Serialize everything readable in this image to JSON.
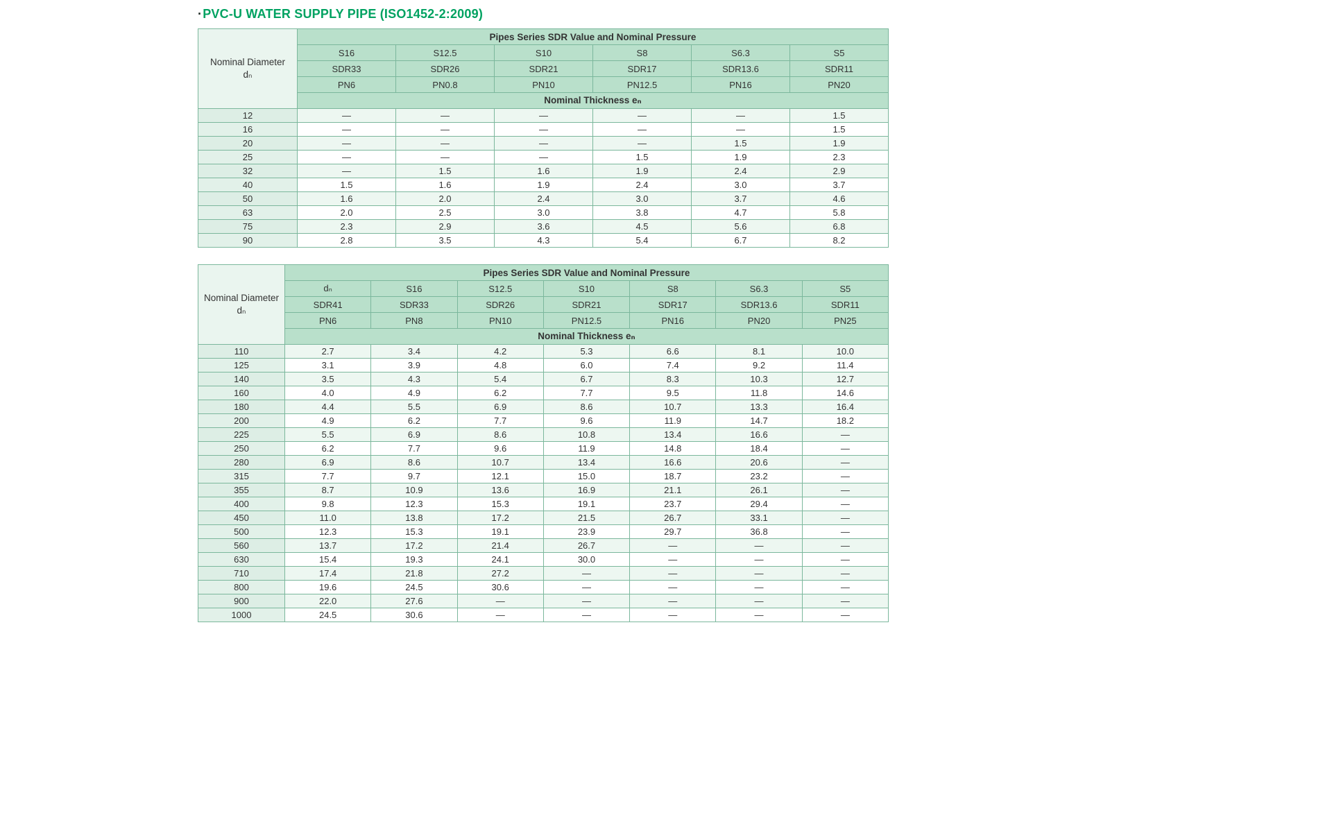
{
  "page": {
    "bullet": "·",
    "title": "PVC-U WATER SUPPLY PIPE (ISO1452-2:2009)"
  },
  "colors": {
    "accent_green": "#00a261",
    "header_bg": "#b9e0cb",
    "corner_bg": "#eaf5ef",
    "border": "#7bb79c",
    "row_stripe": "#edf7f1",
    "diameter_column_bg": "#e2f1e9"
  },
  "table1": {
    "corner_label": "Nominal Diameter\ndₙ",
    "header_title": "Pipes Series SDR Value and Nominal Pressure",
    "series_row": [
      "S16",
      "S12.5",
      "S10",
      "S8",
      "S6.3",
      "S5"
    ],
    "sdr_row": [
      "SDR33",
      "SDR26",
      "SDR21",
      "SDR17",
      "SDR13.6",
      "SDR11"
    ],
    "pn_row": [
      "PN6",
      "PN0.8",
      "PN10",
      "PN12.5",
      "PN16",
      "PN20"
    ],
    "thickness_label": "Nominal Thickness eₙ",
    "rows": [
      {
        "dn": "12",
        "values": [
          "—",
          "—",
          "—",
          "—",
          "—",
          "1.5"
        ]
      },
      {
        "dn": "16",
        "values": [
          "—",
          "—",
          "—",
          "—",
          "—",
          "1.5"
        ]
      },
      {
        "dn": "20",
        "values": [
          "—",
          "—",
          "—",
          "—",
          "1.5",
          "1.9"
        ]
      },
      {
        "dn": "25",
        "values": [
          "—",
          "—",
          "—",
          "1.5",
          "1.9",
          "2.3"
        ]
      },
      {
        "dn": "32",
        "values": [
          "—",
          "1.5",
          "1.6",
          "1.9",
          "2.4",
          "2.9"
        ]
      },
      {
        "dn": "40",
        "values": [
          "1.5",
          "1.6",
          "1.9",
          "2.4",
          "3.0",
          "3.7"
        ]
      },
      {
        "dn": "50",
        "values": [
          "1.6",
          "2.0",
          "2.4",
          "3.0",
          "3.7",
          "4.6"
        ]
      },
      {
        "dn": "63",
        "values": [
          "2.0",
          "2.5",
          "3.0",
          "3.8",
          "4.7",
          "5.8"
        ]
      },
      {
        "dn": "75",
        "values": [
          "2.3",
          "2.9",
          "3.6",
          "4.5",
          "5.6",
          "6.8"
        ]
      },
      {
        "dn": "90",
        "values": [
          "2.8",
          "3.5",
          "4.3",
          "5.4",
          "6.7",
          "8.2"
        ]
      }
    ]
  },
  "table2": {
    "corner_label": "Nominal Diameter\ndₙ",
    "header_title": "Pipes Series SDR Value and Nominal Pressure",
    "series_row": [
      "dₙ",
      "S16",
      "S12.5",
      "S10",
      "S8",
      "S6.3",
      "S5"
    ],
    "sdr_row": [
      "SDR41",
      "SDR33",
      "SDR26",
      "SDR21",
      "SDR17",
      "SDR13.6",
      "SDR11"
    ],
    "pn_row": [
      "PN6",
      "PN8",
      "PN10",
      "PN12.5",
      "PN16",
      "PN20",
      "PN25"
    ],
    "thickness_label": "Nominal Thickness eₙ",
    "rows": [
      {
        "dn": "110",
        "values": [
          "2.7",
          "3.4",
          "4.2",
          "5.3",
          "6.6",
          "8.1",
          "10.0"
        ]
      },
      {
        "dn": "125",
        "values": [
          "3.1",
          "3.9",
          "4.8",
          "6.0",
          "7.4",
          "9.2",
          "11.4"
        ]
      },
      {
        "dn": "140",
        "values": [
          "3.5",
          "4.3",
          "5.4",
          "6.7",
          "8.3",
          "10.3",
          "12.7"
        ]
      },
      {
        "dn": "160",
        "values": [
          "4.0",
          "4.9",
          "6.2",
          "7.7",
          "9.5",
          "11.8",
          "14.6"
        ]
      },
      {
        "dn": "180",
        "values": [
          "4.4",
          "5.5",
          "6.9",
          "8.6",
          "10.7",
          "13.3",
          "16.4"
        ]
      },
      {
        "dn": "200",
        "values": [
          "4.9",
          "6.2",
          "7.7",
          "9.6",
          "11.9",
          "14.7",
          "18.2"
        ]
      },
      {
        "dn": "225",
        "values": [
          "5.5",
          "6.9",
          "8.6",
          "10.8",
          "13.4",
          "16.6",
          "—"
        ]
      },
      {
        "dn": "250",
        "values": [
          "6.2",
          "7.7",
          "9.6",
          "11.9",
          "14.8",
          "18.4",
          "—"
        ]
      },
      {
        "dn": "280",
        "values": [
          "6.9",
          "8.6",
          "10.7",
          "13.4",
          "16.6",
          "20.6",
          "—"
        ]
      },
      {
        "dn": "315",
        "values": [
          "7.7",
          "9.7",
          "12.1",
          "15.0",
          "18.7",
          "23.2",
          "—"
        ]
      },
      {
        "dn": "355",
        "values": [
          "8.7",
          "10.9",
          "13.6",
          "16.9",
          "21.1",
          "26.1",
          "—"
        ]
      },
      {
        "dn": "400",
        "values": [
          "9.8",
          "12.3",
          "15.3",
          "19.1",
          "23.7",
          "29.4",
          "—"
        ]
      },
      {
        "dn": "450",
        "values": [
          "11.0",
          "13.8",
          "17.2",
          "21.5",
          "26.7",
          "33.1",
          "—"
        ]
      },
      {
        "dn": "500",
        "values": [
          "12.3",
          "15.3",
          "19.1",
          "23.9",
          "29.7",
          "36.8",
          "—"
        ]
      },
      {
        "dn": "560",
        "values": [
          "13.7",
          "17.2",
          "21.4",
          "26.7",
          "—",
          "—",
          "—"
        ]
      },
      {
        "dn": "630",
        "values": [
          "15.4",
          "19.3",
          "24.1",
          "30.0",
          "—",
          "—",
          "—"
        ]
      },
      {
        "dn": "710",
        "values": [
          "17.4",
          "21.8",
          "27.2",
          "—",
          "—",
          "—",
          "—"
        ]
      },
      {
        "dn": "800",
        "values": [
          "19.6",
          "24.5",
          "30.6",
          "—",
          "—",
          "—",
          "—"
        ]
      },
      {
        "dn": "900",
        "values": [
          "22.0",
          "27.6",
          "—",
          "—",
          "—",
          "—",
          "—"
        ]
      },
      {
        "dn": "1000",
        "values": [
          "24.5",
          "30.6",
          "—",
          "—",
          "—",
          "—",
          "—"
        ]
      }
    ]
  }
}
